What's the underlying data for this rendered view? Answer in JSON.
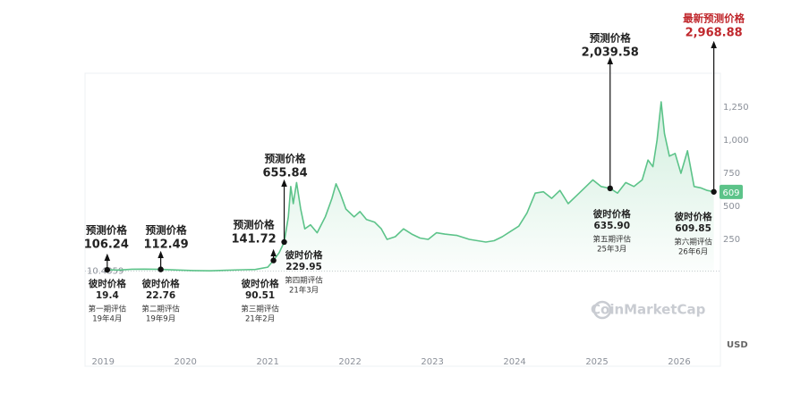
{
  "chart_data": {
    "type": "line",
    "x": [
      2019.05,
      2019.2,
      2019.35,
      2019.5,
      2019.7,
      2019.9,
      2020.1,
      2020.3,
      2020.5,
      2020.7,
      2020.85,
      2021.0,
      2021.07,
      2021.14,
      2021.2,
      2021.25,
      2021.28,
      2021.31,
      2021.35,
      2021.4,
      2021.45,
      2021.52,
      2021.6,
      2021.7,
      2021.78,
      2021.83,
      2021.88,
      2021.95,
      2022.05,
      2022.12,
      2022.2,
      2022.3,
      2022.38,
      2022.45,
      2022.55,
      2022.65,
      2022.75,
      2022.85,
      2022.95,
      2023.05,
      2023.15,
      2023.3,
      2023.45,
      2023.55,
      2023.65,
      2023.75,
      2023.85,
      2023.95,
      2024.05,
      2024.15,
      2024.25,
      2024.35,
      2024.45,
      2024.55,
      2024.65,
      2024.75,
      2024.85,
      2024.95,
      2025.05,
      2025.16,
      2025.25,
      2025.35,
      2025.45,
      2025.55,
      2025.62,
      2025.68,
      2025.73,
      2025.78,
      2025.82,
      2025.88,
      2025.95,
      2026.02,
      2026.1,
      2026.18,
      2026.26,
      2026.34,
      2026.42
    ],
    "series": [
      {
        "color": "#5cc389",
        "values": [
          19.4,
          18,
          24,
          25,
          22.76,
          18,
          14,
          12,
          16,
          20,
          22,
          40,
          90.51,
          150,
          229.95,
          420,
          650,
          520,
          680,
          480,
          330,
          360,
          300,
          420,
          560,
          670,
          600,
          480,
          420,
          460,
          400,
          380,
          330,
          250,
          270,
          330,
          290,
          260,
          250,
          300,
          290,
          280,
          250,
          240,
          230,
          240,
          270,
          310,
          350,
          450,
          600,
          610,
          560,
          620,
          520,
          580,
          640,
          700,
          650,
          635.9,
          600,
          680,
          650,
          700,
          850,
          800,
          1000,
          1290,
          1050,
          880,
          900,
          750,
          920,
          650,
          640,
          620,
          609.85
        ]
      }
    ],
    "xlim": [
      2018.78,
      2026.5
    ],
    "xticks": [
      2019,
      2020,
      2021,
      2022,
      2023,
      2024,
      2025,
      2026
    ],
    "ylim": [
      0,
      1500
    ],
    "yticks": [
      250,
      500,
      {
        "value": 750,
        "label": "750"
      },
      {
        "value": 1000,
        "label": "1,000"
      },
      {
        "value": 1250,
        "label": "1,250"
      }
    ],
    "baseline": 10.4359,
    "current_price": 609,
    "currency": "USD",
    "watermark": "CoinMarketCap",
    "annotations": {
      "predicted_heading": "预测价格",
      "last_predicted_heading": "最新预测价格",
      "price_heading": "彼时价格",
      "x": [
        2019.05,
        2019.7,
        2021.07,
        2021.2,
        2025.16,
        2026.42
      ],
      "price": [
        19.4,
        22.76,
        90.51,
        229.95,
        635.9,
        609.85
      ],
      "price_labels": [
        "19.4",
        "22.76",
        "90.51",
        "229.95",
        "635.90",
        "609.85"
      ],
      "predicted": [
        106.24,
        112.49,
        141.72,
        655.84,
        2039.58,
        2968.88
      ],
      "predicted_labels": [
        "106.24",
        "112.49",
        "141.72",
        "655.84",
        "2,039.58",
        "2,968.88"
      ],
      "periods": [
        "第一期评估",
        "第二期评估",
        "第三期评估",
        "第四期评估",
        "第五期评估",
        "第六期评估"
      ],
      "dates": [
        "19年4月",
        "19年9月",
        "21年2月",
        "21年3月",
        "25年3月",
        "26年6月"
      ]
    }
  }
}
